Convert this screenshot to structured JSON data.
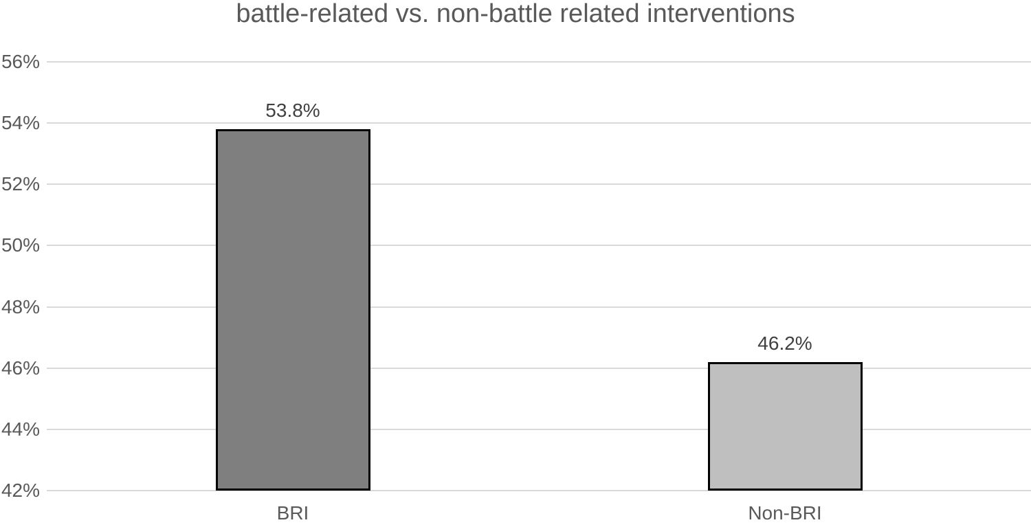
{
  "chart_data": {
    "type": "bar",
    "title": "battle-related vs. non-battle related interventions",
    "categories": [
      "BRI",
      "Non-BRI"
    ],
    "values": [
      53.8,
      46.2
    ],
    "value_labels": [
      "53.8%",
      "46.2%"
    ],
    "ylim": [
      42,
      56
    ],
    "ytick_step": 2,
    "ytick_labels": [
      "42%",
      "44%",
      "46%",
      "48%",
      "50%",
      "52%",
      "54%",
      "56%"
    ],
    "xlabel": "",
    "ylabel": "",
    "grid": true,
    "legend": false,
    "bar_width_ratio": 0.314,
    "bar_colors": [
      "#7f7f7f",
      "#bfbfbf"
    ],
    "bar_border_color": "#000000",
    "colors": {
      "gridline": "#d9d9d9",
      "axis_text": "#595959",
      "title_text": "#595959",
      "data_label_text": "#404040",
      "background": "#ffffff"
    }
  }
}
